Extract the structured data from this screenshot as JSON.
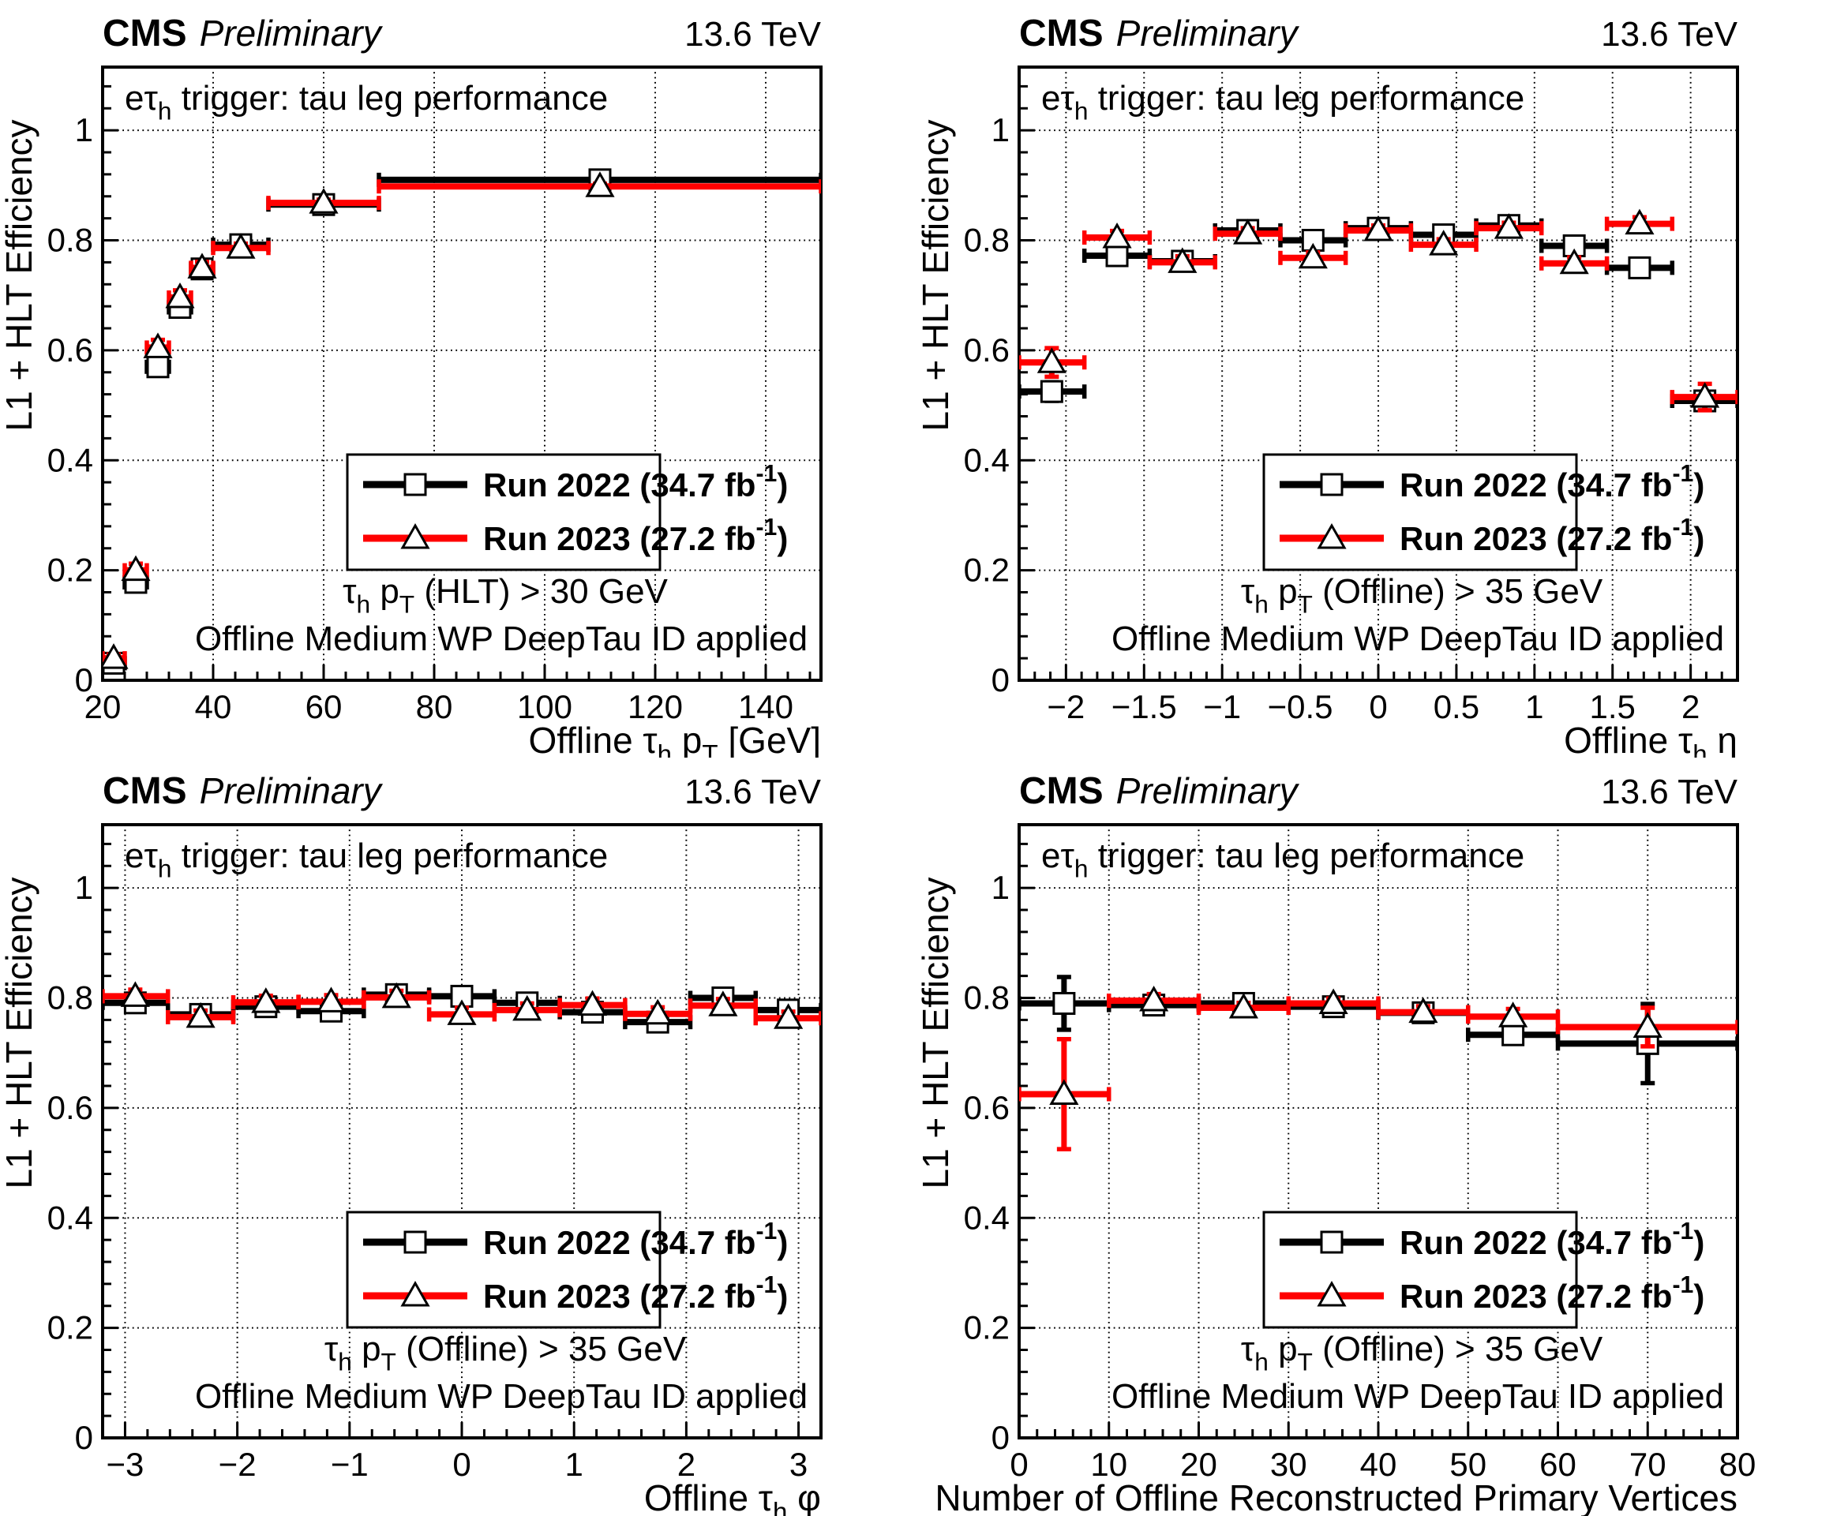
{
  "figure": {
    "header_left_bold": "CMS",
    "header_left_italic": "Preliminary",
    "header_right": "13.6 TeV",
    "panel_label": "eτ_{h} trigger: tau leg performance",
    "y_title": "L1 + HLT Efficiency",
    "info_line2": "Offline Medium WP DeepTau ID applied",
    "colors": {
      "run2022": "#000000",
      "run2023": "#ff0000",
      "marker_outline": "#000000",
      "grid": "#000000"
    },
    "legend": [
      {
        "label": "Run 2022 (34.7 fb^{-1})",
        "color": "#000000",
        "marker": "square"
      },
      {
        "label": "Run 2023 (27.2 fb^{-1})",
        "color": "#ff0000",
        "marker": "triangle"
      }
    ]
  },
  "chart_data": [
    {
      "id": "pt",
      "type": "scatter",
      "title": "eτ_{h} trigger: tau leg performance",
      "xlabel": "Offline τ_{h} p_{T} [GeV]",
      "ylabel": "L1 + HLT Efficiency",
      "info_line1": "τ_{h} p_{T} (HLT) > 30 GeV",
      "info_line2": "Offline Medium WP DeepTau ID applied",
      "xlim": [
        20,
        150
      ],
      "ylim": [
        0,
        1.115
      ],
      "xticks": [
        20,
        40,
        60,
        80,
        100,
        120,
        140
      ],
      "xtick_labels": [
        "20",
        "40",
        "60",
        "80",
        "100",
        "120",
        "140"
      ],
      "x_minor_step": 4,
      "yticks": [
        0,
        0.2,
        0.4,
        0.6,
        0.8,
        1
      ],
      "ytick_labels": [
        "0",
        "0.2",
        "0.4",
        "0.6",
        "0.8",
        "1"
      ],
      "y_minor_step": 0.04,
      "grid": true,
      "legend_position": "right-center",
      "bin_edges": [
        20,
        24,
        28,
        32,
        36,
        40,
        50,
        70,
        150
      ],
      "series": [
        {
          "name": "Run 2022 (34.7 fb^{-1})",
          "color": "#000000",
          "marker": "square",
          "y": [
            0.031,
            0.178,
            0.57,
            0.678,
            0.748,
            0.792,
            0.865,
            0.91
          ],
          "yerr": [
            0.006,
            0.01,
            0.013,
            0.012,
            0.01,
            0.007,
            0.005,
            0.004
          ]
        },
        {
          "name": "Run 2023 (27.2 fb^{-1})",
          "color": "#ff0000",
          "marker": "triangle",
          "y": [
            0.04,
            0.2,
            0.605,
            0.696,
            0.75,
            0.786,
            0.868,
            0.898
          ],
          "yerr": [
            0.007,
            0.012,
            0.014,
            0.013,
            0.011,
            0.008,
            0.006,
            0.005
          ]
        }
      ]
    },
    {
      "id": "eta",
      "type": "scatter",
      "title": "eτ_{h} trigger: tau leg performance",
      "xlabel": "Offline τ_{h} η",
      "ylabel": "L1 + HLT Efficiency",
      "info_line1": "τ_{h} p_{T} (Offline) > 35 GeV",
      "info_line2": "Offline Medium WP DeepTau ID applied",
      "xlim": [
        -2.3,
        2.3
      ],
      "ylim": [
        0,
        1.115
      ],
      "xticks": [
        -2,
        -1.5,
        -1,
        -0.5,
        0,
        0.5,
        1,
        1.5,
        2
      ],
      "xtick_labels": [
        "−2",
        "−1.5",
        "−1",
        "−0.5",
        "0",
        "0.5",
        "1",
        "1.5",
        "2"
      ],
      "x_minor_step": 0.1,
      "yticks": [
        0,
        0.2,
        0.4,
        0.6,
        0.8,
        1
      ],
      "ytick_labels": [
        "0",
        "0.2",
        "0.4",
        "0.6",
        "0.8",
        "1"
      ],
      "y_minor_step": 0.04,
      "grid": true,
      "legend_position": "right-center",
      "bin_edges": [
        -2.3,
        -1.882,
        -1.464,
        -1.045,
        -0.627,
        -0.209,
        0.209,
        0.627,
        1.045,
        1.464,
        1.882,
        2.3
      ],
      "series": [
        {
          "name": "Run 2022 (34.7 fb^{-1})",
          "color": "#000000",
          "marker": "square",
          "y": [
            0.525,
            0.772,
            0.762,
            0.818,
            0.8,
            0.822,
            0.81,
            0.827,
            0.79,
            0.75,
            0.508
          ],
          "yerr": [
            0.017,
            0.01,
            0.009,
            0.008,
            0.008,
            0.008,
            0.008,
            0.008,
            0.009,
            0.01,
            0.016
          ]
        },
        {
          "name": "Run 2023 (27.2 fb^{-1})",
          "color": "#ff0000",
          "marker": "triangle",
          "y": [
            0.578,
            0.805,
            0.76,
            0.812,
            0.768,
            0.818,
            0.792,
            0.822,
            0.758,
            0.83,
            0.515
          ],
          "yerr": [
            0.026,
            0.012,
            0.011,
            0.01,
            0.01,
            0.009,
            0.01,
            0.01,
            0.011,
            0.012,
            0.024
          ]
        }
      ]
    },
    {
      "id": "phi",
      "type": "scatter",
      "title": "eτ_{h} trigger: tau leg performance",
      "xlabel": "Offline τ_{h} φ",
      "ylabel": "L1 + HLT Efficiency",
      "info_line1": "τ_{h} p_{T} (Offline) > 35 GeV",
      "info_line2": "Offline Medium WP DeepTau ID applied",
      "xlim": [
        -3.2,
        3.2
      ],
      "ylim": [
        0,
        1.115
      ],
      "xticks": [
        -3,
        -2,
        -1,
        0,
        1,
        2,
        3
      ],
      "xtick_labels": [
        "−3",
        "−2",
        "−1",
        "0",
        "1",
        "2",
        "3"
      ],
      "x_minor_step": 0.2,
      "yticks": [
        0,
        0.2,
        0.4,
        0.6,
        0.8,
        1
      ],
      "ytick_labels": [
        "0",
        "0.2",
        "0.4",
        "0.6",
        "0.8",
        "1"
      ],
      "y_minor_step": 0.04,
      "grid": true,
      "legend_position": "right-center",
      "bin_edges": [
        -3.2,
        -2.618,
        -2.036,
        -1.455,
        -0.873,
        -0.291,
        0.291,
        0.873,
        1.455,
        2.036,
        2.618,
        3.2
      ],
      "series": [
        {
          "name": "Run 2022 (34.7 fb^{-1})",
          "color": "#000000",
          "marker": "square",
          "y": [
            0.791,
            0.77,
            0.784,
            0.776,
            0.806,
            0.803,
            0.791,
            0.774,
            0.756,
            0.8,
            0.778
          ],
          "yerr": [
            0.01,
            0.01,
            0.01,
            0.01,
            0.01,
            0.01,
            0.01,
            0.01,
            0.01,
            0.01,
            0.01
          ]
        },
        {
          "name": "Run 2023 (27.2 fb^{-1})",
          "color": "#ff0000",
          "marker": "triangle",
          "y": [
            0.803,
            0.765,
            0.792,
            0.793,
            0.801,
            0.77,
            0.778,
            0.787,
            0.771,
            0.786,
            0.763
          ],
          "yerr": [
            0.012,
            0.012,
            0.012,
            0.012,
            0.012,
            0.012,
            0.012,
            0.012,
            0.012,
            0.012,
            0.012
          ]
        }
      ]
    },
    {
      "id": "nvtx",
      "type": "scatter",
      "title": "eτ_{h} trigger: tau leg performance",
      "xlabel": "Number of Offline Reconstructed Primary Vertices",
      "ylabel": "L1 + HLT Efficiency",
      "info_line1": "τ_{h} p_{T} (Offline) > 35 GeV",
      "info_line2": "Offline Medium WP DeepTau ID applied",
      "xlim": [
        0,
        80
      ],
      "ylim": [
        0,
        1.115
      ],
      "xticks": [
        0,
        10,
        20,
        30,
        40,
        50,
        60,
        70,
        80
      ],
      "xtick_labels": [
        "0",
        "10",
        "20",
        "30",
        "40",
        "50",
        "60",
        "70",
        "80"
      ],
      "x_minor_step": 2,
      "yticks": [
        0,
        0.2,
        0.4,
        0.6,
        0.8,
        1
      ],
      "ytick_labels": [
        "0",
        "0.2",
        "0.4",
        "0.6",
        "0.8",
        "1"
      ],
      "y_minor_step": 0.04,
      "grid": true,
      "legend_position": "right-center",
      "bin_edges": [
        0,
        10,
        20,
        30,
        40,
        50,
        60,
        80
      ],
      "series": [
        {
          "name": "Run 2022 (34.7 fb^{-1})",
          "color": "#000000",
          "marker": "square",
          "y": [
            0.79,
            0.787,
            0.79,
            0.784,
            0.773,
            0.733,
            0.717
          ],
          "yerr": [
            0.048,
            0.009,
            0.007,
            0.008,
            0.01,
            0.015,
            0.072
          ]
        },
        {
          "name": "Run 2023 (27.2 fb^{-1})",
          "color": "#ff0000",
          "marker": "triangle",
          "y": [
            0.625,
            0.795,
            0.782,
            0.79,
            0.774,
            0.766,
            0.747
          ],
          "yerr": [
            0.1,
            0.012,
            0.009,
            0.009,
            0.011,
            0.014,
            0.035
          ]
        }
      ]
    }
  ]
}
